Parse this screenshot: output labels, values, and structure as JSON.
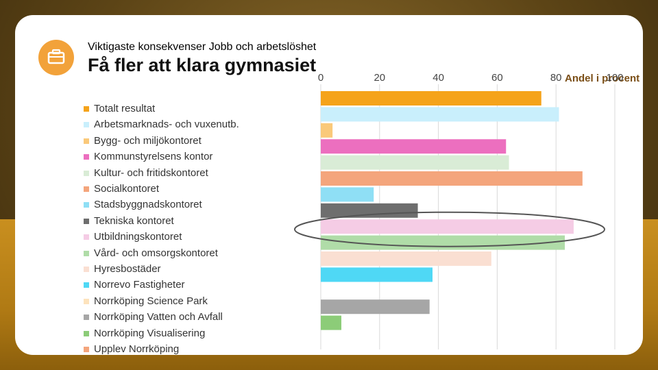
{
  "slide": {
    "subtitle": "Viktigaste konsekvenser Jobb och arbetslöshet",
    "title": "Få fler att klara gymnasiet",
    "icon": "briefcase-icon"
  },
  "chart_data": {
    "type": "bar",
    "orientation": "horizontal",
    "title": "Få fler att klara gymnasiet",
    "xlabel": "Andel i procent",
    "xlim": [
      0,
      100
    ],
    "ticks": [
      0,
      20,
      40,
      60,
      80,
      100
    ],
    "tick_labels": [
      "0",
      "20",
      "40",
      "60",
      "80",
      "100"
    ],
    "grid": true,
    "legend_position": "left",
    "categories": [
      "Totalt resultat",
      "Arbetsmarknads- och vuxenutb.",
      "Bygg- och miljökontoret",
      "Kommunstyrelsens kontor",
      "Kultur- och fritidskontoret",
      "Socialkontoret",
      "Stadsbyggnadskontoret",
      "Tekniska kontoret",
      "Utbildningskontoret",
      "Vård- och omsorgskontoret",
      "Hyresbostäder",
      "Norrevo Fastigheter",
      "Norrköping Science Park",
      "Norrköping Vatten och Avfall",
      "Norrköping Visualisering",
      "Upplev Norrköping"
    ],
    "values": [
      75,
      81,
      4,
      63,
      64,
      89,
      18,
      33,
      86,
      83,
      58,
      38,
      null,
      37,
      7,
      null
    ],
    "colors": [
      "#f5a31a",
      "#c9effc",
      "#fac97a",
      "#ec6fbf",
      "#d9ecd6",
      "#f4a57c",
      "#8fdff5",
      "#6e6e6e",
      "#f5cce5",
      "#b0dca8",
      "#fadfd2",
      "#4fd8f5",
      "#fde3bd",
      "#a6a6a6",
      "#8ccc78",
      "#f4a57c"
    ],
    "highlight": "Utbildningskontoret"
  }
}
